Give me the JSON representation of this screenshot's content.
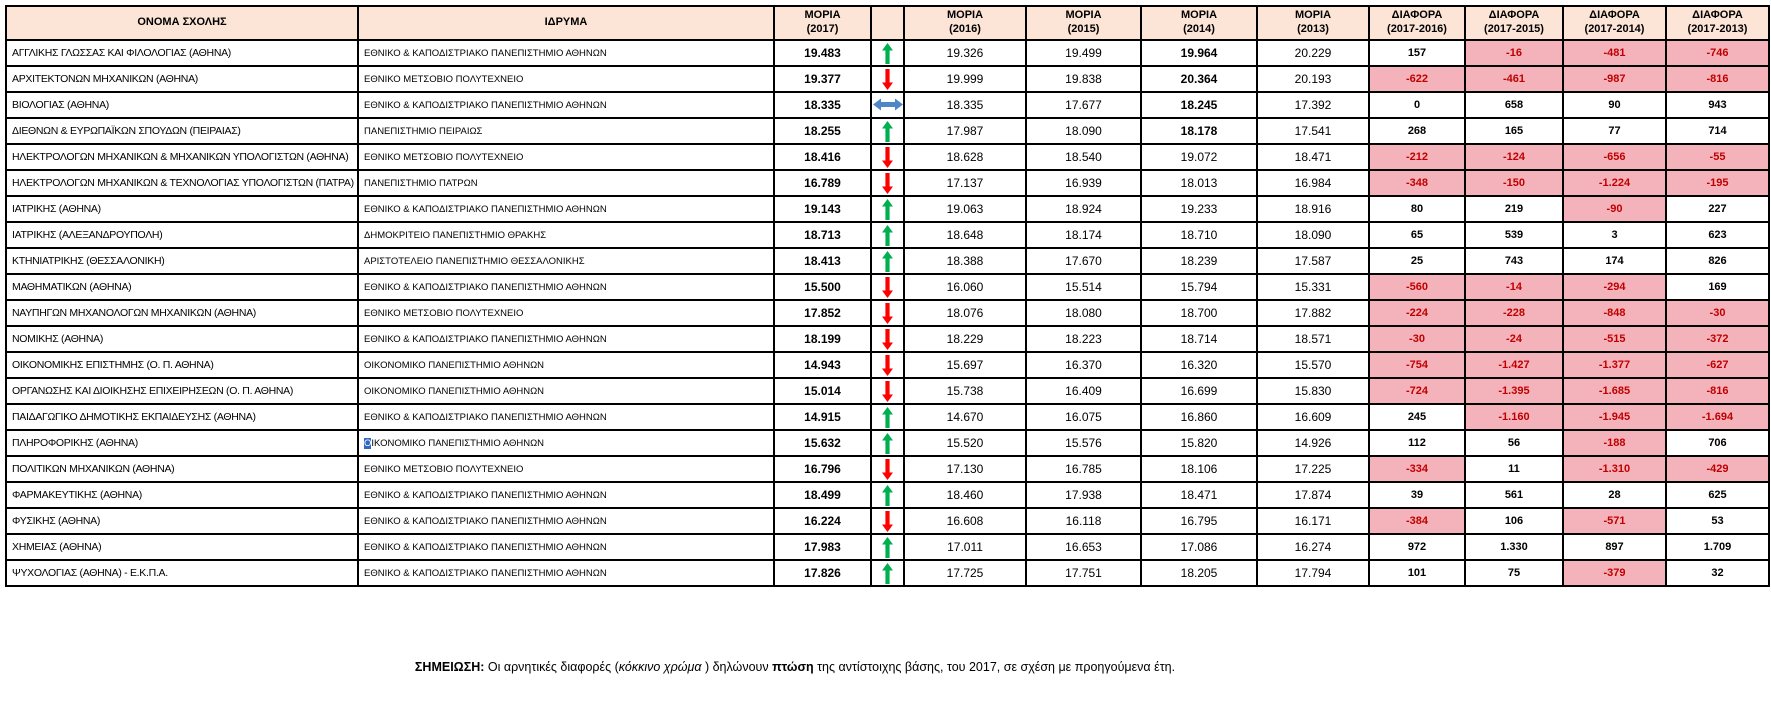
{
  "colors": {
    "header_fill": "#FCE4D6",
    "negative_fill": "#F4B3BA",
    "negative_text": "#C00000",
    "positive_text": "#000000",
    "up_arrow": "#00B050",
    "down_arrow": "#FF0000",
    "flat_arrow": "#4E86C8",
    "selection_fill": "#316AC5"
  },
  "table": {
    "columns": [
      {
        "label": "ΟΝΟΜΑ ΣΧΟΛΗΣ"
      },
      {
        "label": "ΙΔΡΥΜΑ"
      },
      {
        "label": "ΜΟΡΙΑ\n(2017)"
      },
      {
        "label": ""
      },
      {
        "label": "ΜΟΡΙΑ\n(2016)"
      },
      {
        "label": "ΜΟΡΙΑ\n(2015)"
      },
      {
        "label": "ΜΟΡΙΑ\n(2014)"
      },
      {
        "label": "ΜΟΡΙΑ\n(2013)"
      },
      {
        "label": "ΔΙΑΦΟΡΑ\n(2017-2016)"
      },
      {
        "label": "ΔΙΑΦΟΡΑ\n(2017-2015)"
      },
      {
        "label": "ΔΙΑΦΟΡΑ\n(2017-2014)"
      },
      {
        "label": "ΔΙΑΦΟΡΑ\n(2017-2013)"
      }
    ],
    "rows": [
      {
        "name": "ΑΓΓΛΙΚΗΣ ΓΛΩΣΣΑΣ ΚΑΙ ΦΙΛΟΛΟΓΙΑΣ (ΑΘΗΝΑ)",
        "institution": "ΕΘΝΙΚΟ & ΚΑΠΟΔΙΣΤΡΙΑΚΟ ΠΑΝΕΠΙΣΤΗΜΙΟ ΑΘΗΝΩΝ",
        "m2017": "19.483",
        "trend": "up",
        "m2016": "19.326",
        "m2015": "19.499",
        "m2014": "19.964",
        "m2014_bold": true,
        "m2013": "20.229",
        "diffs": [
          "157",
          "-16",
          "-481",
          "-746"
        ]
      },
      {
        "name": "ΑΡΧΙΤΕΚΤΟΝΩΝ ΜΗΧΑΝΙΚΩΝ (ΑΘΗΝΑ)",
        "institution": "ΕΘΝΙΚΟ ΜΕΤΣΟΒΙΟ ΠΟΛΥΤΕΧΝΕΙΟ",
        "m2017": "19.377",
        "trend": "down",
        "m2016": "19.999",
        "m2015": "19.838",
        "m2014": "20.364",
        "m2014_bold": true,
        "m2013": "20.193",
        "diffs": [
          "-622",
          "-461",
          "-987",
          "-816"
        ]
      },
      {
        "name": "ΒΙΟΛΟΓΙΑΣ (ΑΘΗΝΑ)",
        "institution": "ΕΘΝΙΚΟ & ΚΑΠΟΔΙΣΤΡΙΑΚΟ ΠΑΝΕΠΙΣΤΗΜΙΟ ΑΘΗΝΩΝ",
        "m2017": "18.335",
        "trend": "flat",
        "m2016": "18.335",
        "m2015": "17.677",
        "m2014": "18.245",
        "m2014_bold": true,
        "m2013": "17.392",
        "diffs": [
          "0",
          "658",
          "90",
          "943"
        ]
      },
      {
        "name": "ΔΙΕΘΝΩΝ & ΕΥΡΩΠΑΪΚΩΝ ΣΠΟΥΔΩΝ (ΠΕΙΡΑΙΑΣ)",
        "institution": "ΠΑΝΕΠΙΣΤΗΜΙΟ ΠΕΙΡΑΙΩΣ",
        "m2017": "18.255",
        "trend": "up",
        "m2016": "17.987",
        "m2015": "18.090",
        "m2014": "18.178",
        "m2014_bold": true,
        "m2013": "17.541",
        "diffs": [
          "268",
          "165",
          "77",
          "714"
        ]
      },
      {
        "name": "ΗΛΕΚΤΡΟΛΟΓΩΝ ΜΗΧΑΝΙΚΩΝ & ΜΗΧΑΝΙΚΩΝ ΥΠΟΛΟΓΙΣΤΩΝ (ΑΘΗΝΑ)",
        "institution": "ΕΘΝΙΚΟ ΜΕΤΣΟΒΙΟ ΠΟΛΥΤΕΧΝΕΙΟ",
        "m2017": "18.416",
        "trend": "down",
        "m2016": "18.628",
        "m2015": "18.540",
        "m2014": "19.072",
        "m2013": "18.471",
        "diffs": [
          "-212",
          "-124",
          "-656",
          "-55"
        ]
      },
      {
        "name": "ΗΛΕΚΤΡΟΛΟΓΩΝ ΜΗΧΑΝΙΚΩΝ & ΤΕΧΝΟΛΟΓΙΑΣ ΥΠΟΛΟΓΙΣΤΩΝ (ΠΑΤΡΑ)",
        "institution": "ΠΑΝΕΠΙΣΤΗΜΙΟ ΠΑΤΡΩΝ",
        "m2017": "16.789",
        "trend": "down",
        "m2016": "17.137",
        "m2015": "16.939",
        "m2014": "18.013",
        "m2013": "16.984",
        "diffs": [
          "-348",
          "-150",
          "-1.224",
          "-195"
        ]
      },
      {
        "name": "ΙΑΤΡΙΚΗΣ (ΑΘΗΝΑ)",
        "institution": "ΕΘΝΙΚΟ & ΚΑΠΟΔΙΣΤΡΙΑΚΟ ΠΑΝΕΠΙΣΤΗΜΙΟ ΑΘΗΝΩΝ",
        "m2017": "19.143",
        "trend": "up",
        "m2016": "19.063",
        "m2015": "18.924",
        "m2014": "19.233",
        "m2013": "18.916",
        "diffs": [
          "80",
          "219",
          "-90",
          "227"
        ]
      },
      {
        "name": "ΙΑΤΡΙΚΗΣ (ΑΛΕΞΑΝΔΡΟΥΠΟΛΗ)",
        "institution": "ΔΗΜΟΚΡΙΤΕΙΟ ΠΑΝΕΠΙΣΤΗΜΙΟ ΘΡΑΚΗΣ",
        "m2017": "18.713",
        "trend": "up",
        "m2016": "18.648",
        "m2015": "18.174",
        "m2014": "18.710",
        "m2013": "18.090",
        "diffs": [
          "65",
          "539",
          "3",
          "623"
        ]
      },
      {
        "name": "ΚΤΗΝΙΑΤΡΙΚΗΣ (ΘΕΣΣΑΛΟΝΙΚΗ)",
        "institution": "ΑΡΙΣΤΟΤΕΛΕΙΟ ΠΑΝΕΠΙΣΤΗΜΙΟ ΘΕΣΣΑΛΟΝΙΚΗΣ",
        "m2017": "18.413",
        "trend": "up",
        "m2016": "18.388",
        "m2015": "17.670",
        "m2014": "18.239",
        "m2013": "17.587",
        "diffs": [
          "25",
          "743",
          "174",
          "826"
        ]
      },
      {
        "name": "ΜΑΘΗΜΑΤΙΚΩΝ (ΑΘΗΝΑ)",
        "institution": "ΕΘΝΙΚΟ & ΚΑΠΟΔΙΣΤΡΙΑΚΟ ΠΑΝΕΠΙΣΤΗΜΙΟ ΑΘΗΝΩΝ",
        "m2017": "15.500",
        "trend": "down",
        "m2016": "16.060",
        "m2015": "15.514",
        "m2014": "15.794",
        "m2013": "15.331",
        "diffs": [
          "-560",
          "-14",
          "-294",
          "169"
        ]
      },
      {
        "name": "ΝΑΥΠΗΓΩΝ ΜΗΧΑΝΟΛΟΓΩΝ ΜΗΧΑΝΙΚΩΝ (ΑΘΗΝΑ)",
        "institution": "ΕΘΝΙΚΟ ΜΕΤΣΟΒΙΟ ΠΟΛΥΤΕΧΝΕΙΟ",
        "m2017": "17.852",
        "trend": "down",
        "m2016": "18.076",
        "m2015": "18.080",
        "m2014": "18.700",
        "m2013": "17.882",
        "diffs": [
          "-224",
          "-228",
          "-848",
          "-30"
        ]
      },
      {
        "name": "ΝΟΜΙΚΗΣ (ΑΘΗΝΑ)",
        "institution": "ΕΘΝΙΚΟ & ΚΑΠΟΔΙΣΤΡΙΑΚΟ ΠΑΝΕΠΙΣΤΗΜΙΟ ΑΘΗΝΩΝ",
        "m2017": "18.199",
        "trend": "down",
        "m2016": "18.229",
        "m2015": "18.223",
        "m2014": "18.714",
        "m2013": "18.571",
        "diffs": [
          "-30",
          "-24",
          "-515",
          "-372"
        ]
      },
      {
        "name": "ΟΙΚΟΝΟΜΙΚΗΣ ΕΠΙΣΤΗΜΗΣ (Ο. Π. ΑΘΗΝΑ)",
        "institution": "ΟΙΚΟΝΟΜΙΚΟ ΠΑΝΕΠΙΣΤΗΜΙΟ ΑΘΗΝΩΝ",
        "m2017": "14.943",
        "trend": "down",
        "m2016": "15.697",
        "m2015": "16.370",
        "m2014": "16.320",
        "m2013": "15.570",
        "diffs": [
          "-754",
          "-1.427",
          "-1.377",
          "-627"
        ]
      },
      {
        "name": "ΟΡΓΑΝΩΣΗΣ ΚΑΙ ΔΙΟΙΚΗΣΗΣ ΕΠΙΧΕΙΡΗΣΕΩΝ (Ο. Π. ΑΘΗΝΑ)",
        "institution": "ΟΙΚΟΝΟΜΙΚΟ ΠΑΝΕΠΙΣΤΗΜΙΟ ΑΘΗΝΩΝ",
        "m2017": "15.014",
        "trend": "down",
        "m2016": "15.738",
        "m2015": "16.409",
        "m2014": "16.699",
        "m2013": "15.830",
        "diffs": [
          "-724",
          "-1.395",
          "-1.685",
          "-816"
        ]
      },
      {
        "name": "ΠΑΙΔΑΓΩΓΙΚΟ ΔΗΜΟΤΙΚΗΣ ΕΚΠΑΙΔΕΥΣΗΣ (ΑΘΗΝΑ)",
        "institution": "ΕΘΝΙΚΟ & ΚΑΠΟΔΙΣΤΡΙΑΚΟ ΠΑΝΕΠΙΣΤΗΜΙΟ ΑΘΗΝΩΝ",
        "m2017": "14.915",
        "trend": "up",
        "m2016": "14.670",
        "m2015": "16.075",
        "m2014": "16.860",
        "m2013": "16.609",
        "diffs": [
          "245",
          "-1.160",
          "-1.945",
          "-1.694"
        ]
      },
      {
        "name": "ΠΛΗΡΟΦΟΡΙΚΗΣ (ΑΘΗΝΑ)",
        "institution": "ΟΙΚΟΝΟΜΙΚΟ ΠΑΝΕΠΙΣΤΗΜΙΟ ΑΘΗΝΩΝ",
        "selection": {
          "start": 0,
          "length": 1
        },
        "m2017": "15.632",
        "trend": "up",
        "m2016": "15.520",
        "m2015": "15.576",
        "m2014": "15.820",
        "m2013": "14.926",
        "diffs": [
          "112",
          "56",
          "-188",
          "706"
        ]
      },
      {
        "name": "ΠΟΛΙΤΙΚΩΝ ΜΗΧΑΝΙΚΩΝ (ΑΘΗΝΑ)",
        "institution": "ΕΘΝΙΚΟ ΜΕΤΣΟΒΙΟ ΠΟΛΥΤΕΧΝΕΙΟ",
        "m2017": "16.796",
        "trend": "down",
        "m2016": "17.130",
        "m2015": "16.785",
        "m2014": "18.106",
        "m2013": "17.225",
        "diffs": [
          "-334",
          "11",
          "-1.310",
          "-429"
        ]
      },
      {
        "name": "ΦΑΡΜΑΚΕΥΤΙΚΗΣ (ΑΘΗΝΑ)",
        "institution": "ΕΘΝΙΚΟ & ΚΑΠΟΔΙΣΤΡΙΑΚΟ ΠΑΝΕΠΙΣΤΗΜΙΟ ΑΘΗΝΩΝ",
        "m2017": "18.499",
        "trend": "up",
        "m2016": "18.460",
        "m2015": "17.938",
        "m2014": "18.471",
        "m2013": "17.874",
        "diffs": [
          "39",
          "561",
          "28",
          "625"
        ]
      },
      {
        "name": "ΦΥΣΙΚΗΣ (ΑΘΗΝΑ)",
        "institution": "ΕΘΝΙΚΟ & ΚΑΠΟΔΙΣΤΡΙΑΚΟ ΠΑΝΕΠΙΣΤΗΜΙΟ ΑΘΗΝΩΝ",
        "m2017": "16.224",
        "trend": "down",
        "m2016": "16.608",
        "m2015": "16.118",
        "m2014": "16.795",
        "m2013": "16.171",
        "diffs": [
          "-384",
          "106",
          "-571",
          "53"
        ]
      },
      {
        "name": "ΧΗΜΕΙΑΣ (ΑΘΗΝΑ)",
        "institution": "ΕΘΝΙΚΟ & ΚΑΠΟΔΙΣΤΡΙΑΚΟ ΠΑΝΕΠΙΣΤΗΜΙΟ ΑΘΗΝΩΝ",
        "m2017": "17.983",
        "trend": "up",
        "m2016": "17.011",
        "m2015": "16.653",
        "m2014": "17.086",
        "m2013": "16.274",
        "diffs": [
          "972",
          "1.330",
          "897",
          "1.709"
        ]
      },
      {
        "name": "ΨΥΧΟΛΟΓΙΑΣ (ΑΘΗΝΑ) - Ε.Κ.Π.Α.",
        "institution": "ΕΘΝΙΚΟ & ΚΑΠΟΔΙΣΤΡΙΑΚΟ ΠΑΝΕΠΙΣΤΗΜΙΟ ΑΘΗΝΩΝ",
        "m2017": "17.826",
        "trend": "up",
        "m2016": "17.725",
        "m2015": "17.751",
        "m2014": "18.205",
        "m2013": "17.794",
        "diffs": [
          "101",
          "75",
          "-379",
          "32"
        ]
      }
    ]
  },
  "note": {
    "segments": [
      {
        "text": "ΣΗΜΕΙΩΣΗ:",
        "bold": true
      },
      {
        "text": " Οι αρνητικές διαφορές ("
      },
      {
        "text": "κόκκινο χρώμα ",
        "italic": true
      },
      {
        "text": ") δηλώνουν "
      },
      {
        "text": "πτώση",
        "bold": true
      },
      {
        "text": " της αντίστοιχης βάσης, του 2017, σε σχέση με προηγούμενα έτη."
      }
    ]
  }
}
